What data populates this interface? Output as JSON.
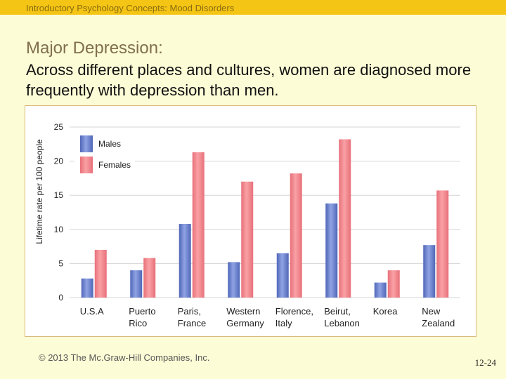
{
  "header": {
    "course_title": "Introductory Psychology Concepts: Mood Disorders"
  },
  "slide": {
    "title": "Major Depression:",
    "subtitle": "Across different places and cultures, women are diagnosed more frequently with depression than men."
  },
  "footer": {
    "copyright": "© 2013 The Mc.Graw-Hill Companies, Inc.",
    "slide_number": "12-24"
  },
  "colors": {
    "males": "#8fa3e3",
    "males_dark": "#5067b8",
    "females": "#f9a1a5",
    "females_dark": "#e8707a",
    "grid": "#d6d6d6"
  },
  "chart_data": {
    "type": "bar",
    "title": "",
    "xlabel": "",
    "ylabel": "Lifetime rate per 100 people",
    "ylim": [
      0,
      25
    ],
    "yticks": [
      0,
      5,
      10,
      15,
      20,
      25
    ],
    "grid": true,
    "legend_position": "top-left",
    "categories": [
      [
        "U.S.A"
      ],
      [
        "Puerto",
        "Rico"
      ],
      [
        "Paris,",
        "France"
      ],
      [
        "Western",
        "Germany"
      ],
      [
        "Florence,",
        "Italy"
      ],
      [
        "Beirut,",
        "Lebanon"
      ],
      [
        "Korea"
      ],
      [
        "New",
        "Zealand"
      ]
    ],
    "series": [
      {
        "name": "Males",
        "values": [
          2.8,
          4.0,
          10.8,
          5.2,
          6.5,
          13.8,
          2.2,
          7.7
        ]
      },
      {
        "name": "Females",
        "values": [
          7.0,
          5.8,
          21.3,
          17.0,
          18.2,
          23.2,
          4.0,
          15.7
        ]
      }
    ]
  }
}
